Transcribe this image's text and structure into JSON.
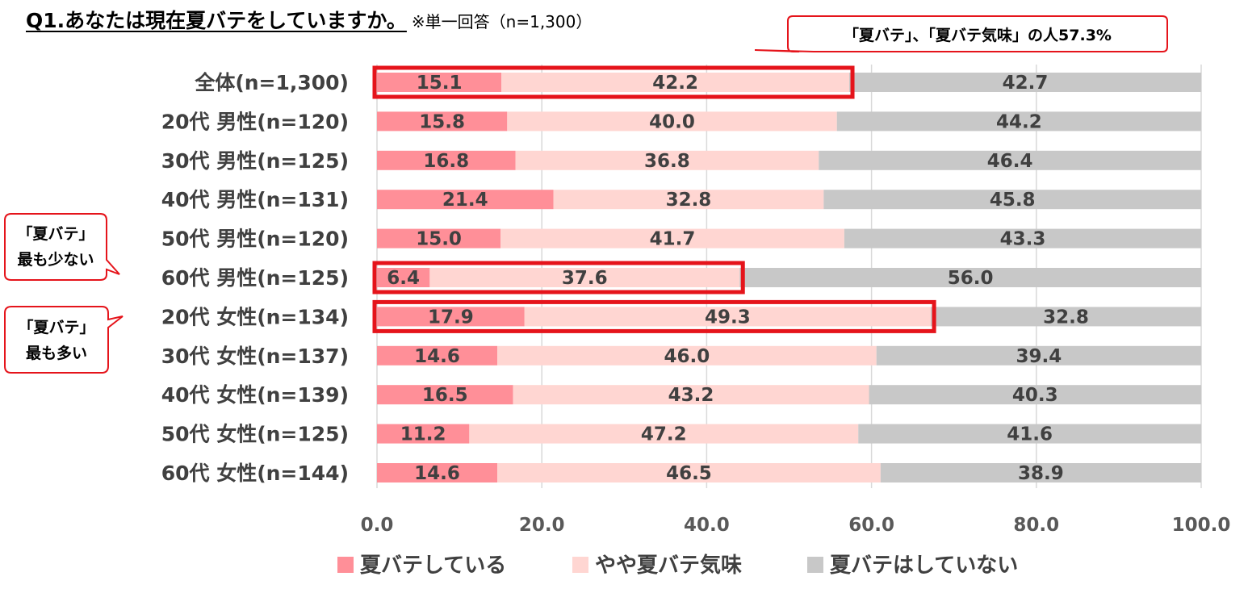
{
  "title": "Q1.あなたは現在夏バテをしていますか。",
  "note": "※単一回答（n=1,300）",
  "colors": {
    "series1": "#ff8f98",
    "series2": "#ffd6d2",
    "series3": "#c8c8c8",
    "highlight": "#e5141b"
  },
  "chart_data": {
    "type": "bar",
    "orientation": "horizontal",
    "stacked": true,
    "categories": [
      "全体(n=1,300)",
      "20代 男性(n=120)",
      "30代 男性(n=125)",
      "40代 男性(n=131)",
      "50代 男性(n=120)",
      "60代 男性(n=125)",
      "20代 女性(n=134)",
      "30代 女性(n=137)",
      "40代 女性(n=139)",
      "50代 女性(n=125)",
      "60代 女性(n=144)"
    ],
    "series": [
      {
        "name": "夏バテしている",
        "values": [
          15.1,
          15.8,
          16.8,
          21.4,
          15.0,
          6.4,
          17.9,
          14.6,
          16.5,
          11.2,
          14.6
        ]
      },
      {
        "name": "やや夏バテ気味",
        "values": [
          42.2,
          40.0,
          36.8,
          32.8,
          41.7,
          37.6,
          49.3,
          46.0,
          43.2,
          47.2,
          46.5
        ]
      },
      {
        "name": "夏バテはしていない",
        "values": [
          42.7,
          44.2,
          46.4,
          45.8,
          43.3,
          56.0,
          32.8,
          39.4,
          40.3,
          41.6,
          38.9
        ]
      }
    ],
    "value_labels": [
      [
        "15.1",
        "15.8",
        "16.8",
        "21.4",
        "15.0",
        "6.4",
        "17.9",
        "14.6",
        "16.5",
        "11.2",
        "14.6"
      ],
      [
        "42.2",
        "40.0",
        "36.8",
        "32.8",
        "41.7",
        "37.6",
        "49.3",
        "46.0",
        "43.2",
        "47.2",
        "46.5"
      ],
      [
        "42.7",
        "44.2",
        "46.4",
        "45.8",
        "43.3",
        "56.0",
        "32.8",
        "39.4",
        "40.3",
        "41.6",
        "38.9"
      ]
    ],
    "xlim": [
      0,
      100
    ],
    "xticks": [
      "0.0",
      "20.0",
      "40.0",
      "60.0",
      "80.0",
      "100.0"
    ],
    "grid": true,
    "legend_position": "bottom",
    "highlighted_categories": [
      0,
      5,
      6
    ],
    "annotations": [
      {
        "lines": [
          "「夏バテ」、「夏バテ気味」の人57.3%"
        ],
        "target_category": 0
      },
      {
        "lines": [
          "「夏バテ」",
          "最も少ない"
        ],
        "target_category": 5
      },
      {
        "lines": [
          "「夏バテ」",
          "最も多い"
        ],
        "target_category": 6
      }
    ]
  }
}
